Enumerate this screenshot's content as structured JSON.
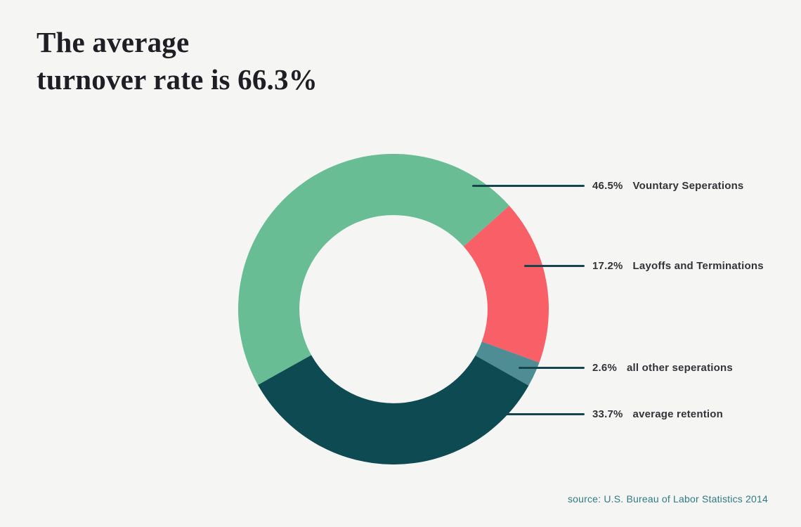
{
  "title": {
    "line1": "The average",
    "line2": "turnover rate is 66.3%"
  },
  "source": "source: U.S. Bureau of Labor Statistics 2014",
  "colors": {
    "background": "#f5f5f3",
    "leader_line": "#17454d",
    "label_text": "#333338",
    "title_text": "#1e1e24",
    "source_text": "#2e7b85"
  },
  "chart_data": {
    "type": "pie",
    "subtype": "donut",
    "title": "The average turnover rate is 66.3%",
    "legend_position": "right-callouts",
    "start_angle_deg": 240.8,
    "inner_radius_ratio": 0.606,
    "segments": [
      {
        "label": "Vountary Seperations",
        "value": 46.5,
        "pct_label": "46.5%",
        "color": "#68bd95"
      },
      {
        "label": "Layoffs and Terminations",
        "value": 17.2,
        "pct_label": "17.2%",
        "color": "#f85f66"
      },
      {
        "label": "all other seperations",
        "value": 2.6,
        "pct_label": "2.6%",
        "color": "#4d8d93"
      },
      {
        "label": "average retention",
        "value": 33.7,
        "pct_label": "33.7%",
        "color": "#0d4a52"
      }
    ]
  }
}
